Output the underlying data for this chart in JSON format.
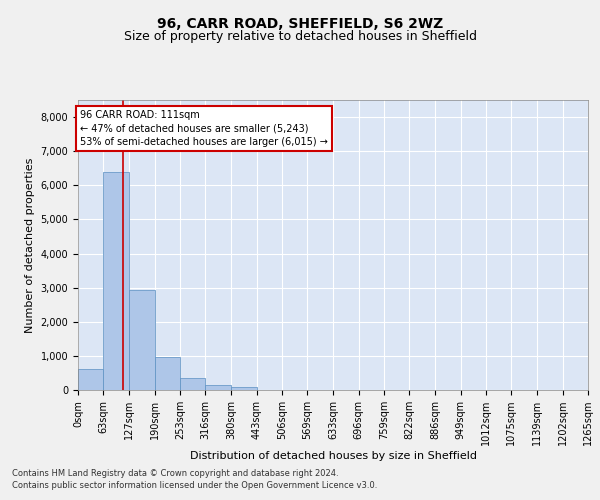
{
  "title": "96, CARR ROAD, SHEFFIELD, S6 2WZ",
  "subtitle": "Size of property relative to detached houses in Sheffield",
  "xlabel": "Distribution of detached houses by size in Sheffield",
  "ylabel": "Number of detached properties",
  "footer_line1": "Contains HM Land Registry data © Crown copyright and database right 2024.",
  "footer_line2": "Contains public sector information licensed under the Open Government Licence v3.0.",
  "property_size": 111,
  "annotation_title": "96 CARR ROAD: 111sqm",
  "annotation_line1": "← 47% of detached houses are smaller (5,243)",
  "annotation_line2": "53% of semi-detached houses are larger (6,015) →",
  "bin_labels": [
    "0sqm",
    "63sqm",
    "127sqm",
    "190sqm",
    "253sqm",
    "316sqm",
    "380sqm",
    "443sqm",
    "506sqm",
    "569sqm",
    "633sqm",
    "696sqm",
    "759sqm",
    "822sqm",
    "886sqm",
    "949sqm",
    "1012sqm",
    "1075sqm",
    "1139sqm",
    "1202sqm",
    "1265sqm"
  ],
  "bin_edges": [
    0,
    63,
    127,
    190,
    253,
    316,
    380,
    443,
    506,
    569,
    633,
    696,
    759,
    822,
    886,
    949,
    1012,
    1075,
    1139,
    1202,
    1265
  ],
  "bar_heights": [
    620,
    6380,
    2920,
    970,
    360,
    140,
    75,
    0,
    0,
    0,
    0,
    0,
    0,
    0,
    0,
    0,
    0,
    0,
    0,
    0
  ],
  "bar_color": "#aec6e8",
  "bar_edge_color": "#5a8fc2",
  "line_color": "#cc0000",
  "bg_color": "#dce6f5",
  "fig_bg_color": "#f0f0f0",
  "ylim": [
    0,
    8500
  ],
  "yticks": [
    0,
    1000,
    2000,
    3000,
    4000,
    5000,
    6000,
    7000,
    8000
  ],
  "annotation_box_color": "#ffffff",
  "annotation_box_edge": "#cc0000",
  "grid_color": "#ffffff",
  "title_fontsize": 10,
  "subtitle_fontsize": 9,
  "ylabel_fontsize": 8,
  "xlabel_fontsize": 8,
  "tick_fontsize": 7,
  "footer_fontsize": 6,
  "annot_fontsize": 7
}
